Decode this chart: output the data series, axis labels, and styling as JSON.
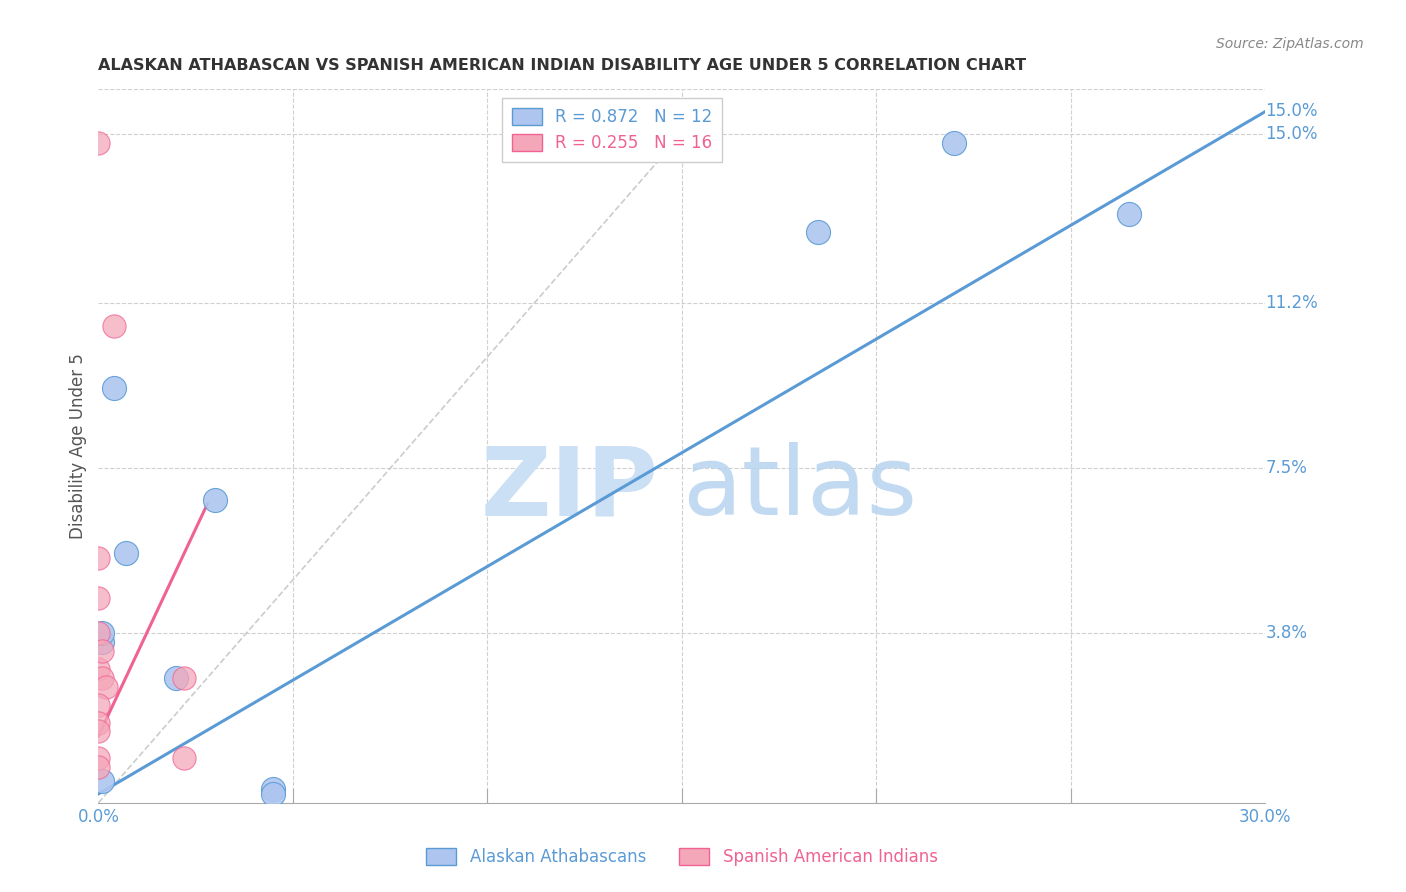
{
  "title": "ALASKAN ATHABASCAN VS SPANISH AMERICAN INDIAN DISABILITY AGE UNDER 5 CORRELATION CHART",
  "source": "Source: ZipAtlas.com",
  "ylabel": "Disability Age Under 5",
  "legend_entries": [
    {
      "label": "R = 0.872   N = 12",
      "color": "#aec6ef"
    },
    {
      "label": "R = 0.255   N = 16",
      "color": "#f4a7b9"
    }
  ],
  "legend_bottom": [
    "Alaskan Athabascans",
    "Spanish American Indians"
  ],
  "ytick_labels": [
    "15.0%",
    "11.2%",
    "7.5%",
    "3.8%"
  ],
  "ytick_values": [
    0.15,
    0.112,
    0.075,
    0.038
  ],
  "xlim": [
    0,
    0.3
  ],
  "ylim": [
    0,
    0.16
  ],
  "blue_color": "#5b9bd5",
  "pink_color": "#f06292",
  "blue_fill": "#aec6ef",
  "pink_fill": "#f4a7b9",
  "blue_scatter": [
    [
      0.001,
      0.036
    ],
    [
      0.004,
      0.093
    ],
    [
      0.007,
      0.056
    ],
    [
      0.03,
      0.068
    ],
    [
      0.001,
      0.038
    ],
    [
      0.001,
      0.005
    ],
    [
      0.02,
      0.028
    ],
    [
      0.045,
      0.003
    ],
    [
      0.045,
      0.002
    ],
    [
      0.185,
      0.128
    ],
    [
      0.22,
      0.148
    ],
    [
      0.265,
      0.132
    ]
  ],
  "pink_scatter": [
    [
      0.0,
      0.148
    ],
    [
      0.004,
      0.107
    ],
    [
      0.0,
      0.055
    ],
    [
      0.0,
      0.046
    ],
    [
      0.0,
      0.038
    ],
    [
      0.0,
      0.03
    ],
    [
      0.001,
      0.034
    ],
    [
      0.001,
      0.028
    ],
    [
      0.002,
      0.026
    ],
    [
      0.0,
      0.022
    ],
    [
      0.0,
      0.018
    ],
    [
      0.0,
      0.016
    ],
    [
      0.0,
      0.01
    ],
    [
      0.0,
      0.008
    ],
    [
      0.022,
      0.028
    ],
    [
      0.022,
      0.01
    ]
  ],
  "blue_line_x": [
    0.0,
    0.3
  ],
  "blue_line_y": [
    0.002,
    0.155
  ],
  "pink_line_x": [
    0.0,
    0.028
  ],
  "pink_line_y": [
    0.015,
    0.067
  ],
  "diag_line_x": [
    0.0,
    0.155
  ],
  "diag_line_y": [
    0.0,
    0.155
  ],
  "watermark_zip": "ZIP",
  "watermark_atlas": "atlas",
  "background_color": "#ffffff",
  "grid_color": "#d0d0d0"
}
